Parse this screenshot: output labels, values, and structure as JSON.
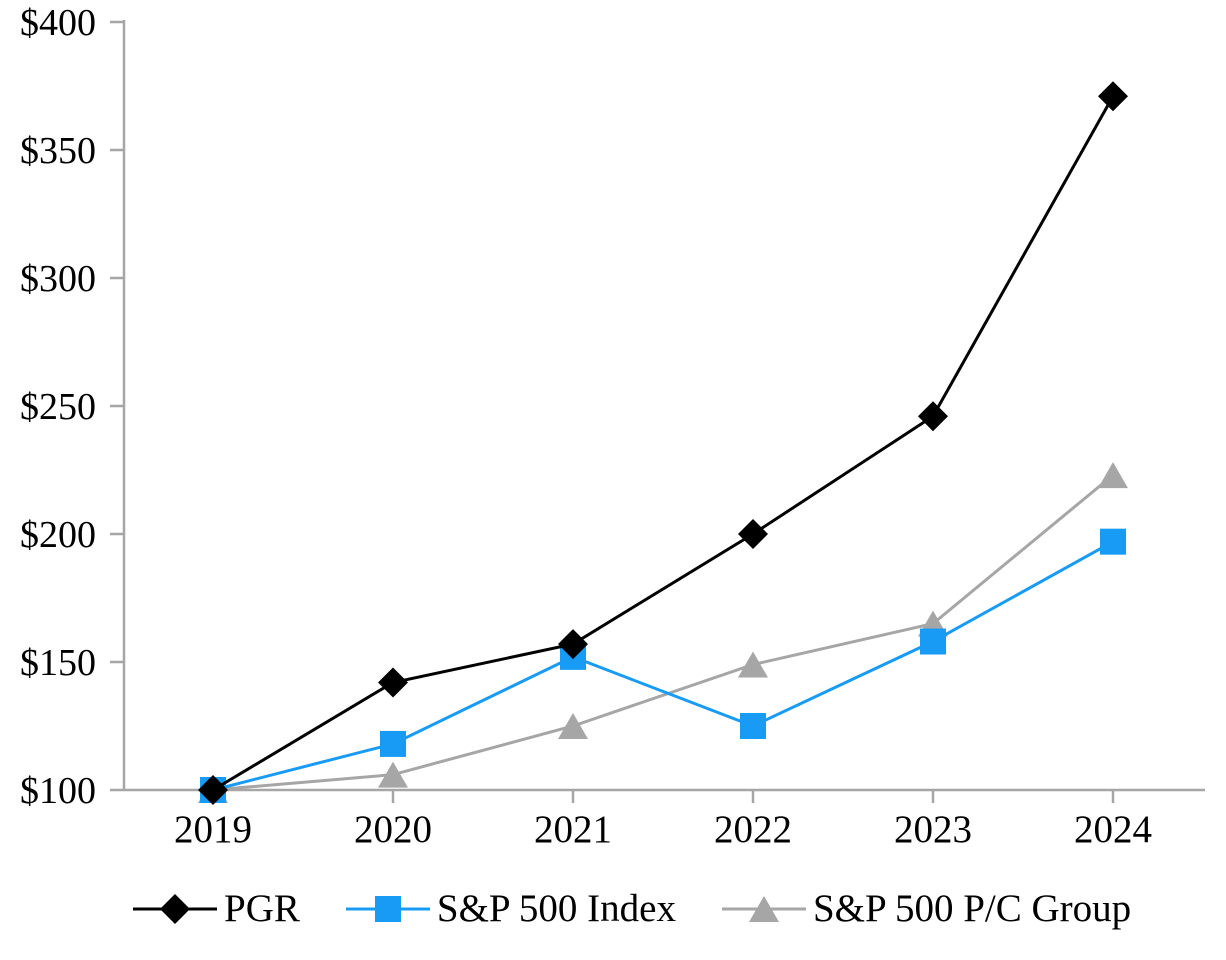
{
  "page": {
    "background_color": "#ffffff",
    "title": "Cumulative Total Return Performance Graph"
  },
  "chart_data": {
    "type": "line",
    "title": "",
    "categories": [
      "2019",
      "2020",
      "2021",
      "2022",
      "2023",
      "2024"
    ],
    "series": [
      {
        "name": "PGR",
        "marker": "diamond-icon",
        "color": "#000000",
        "values": [
          100,
          142,
          157,
          200,
          246,
          371
        ]
      },
      {
        "name": "S&P 500 Index",
        "marker": "square-icon",
        "color": "#189BF4",
        "values": [
          100,
          118,
          152,
          125,
          158,
          197
        ]
      },
      {
        "name": "S&P 500 P/C Group",
        "marker": "triangle-icon",
        "color": "#A6A6A6",
        "values": [
          100,
          106,
          125,
          149,
          165,
          223
        ]
      }
    ],
    "y_axis": {
      "min": 100,
      "max": 400,
      "step": 50,
      "tick_labels": [
        "$100",
        "$150",
        "$200",
        "$250",
        "$300",
        "$350",
        "$400"
      ],
      "currency_prefix": "$"
    },
    "x_axis": {
      "labels": [
        "2019",
        "2020",
        "2021",
        "2022",
        "2023",
        "2024"
      ]
    },
    "grid": false,
    "legend_position": "bottom",
    "axis_color": "#A6A6A6",
    "text_color": "#000000",
    "line_width": 3
  }
}
